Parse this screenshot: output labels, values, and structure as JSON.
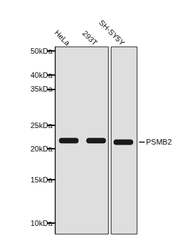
{
  "chart_data": {
    "type": "blot",
    "categories": [
      "HeLa",
      "293T",
      "SH-SY5Y"
    ],
    "series": [
      {
        "name": "PSMB2",
        "color": "#1a1a1a",
        "values": [
          21.6,
          21.6,
          21.3
        ]
      }
    ],
    "ylim": [
      9,
      52
    ],
    "yticks": [
      {
        "value": 10,
        "label": "10kDa"
      },
      {
        "value": 15,
        "label": "15kDa"
      },
      {
        "value": 20,
        "label": "20kDa"
      },
      {
        "value": 25,
        "label": "25kDa"
      },
      {
        "value": 35,
        "label": "35kDa"
      },
      {
        "value": 40,
        "label": "40kDa"
      },
      {
        "value": 50,
        "label": "50kDa"
      }
    ],
    "log": "y",
    "grid": false
  }
}
